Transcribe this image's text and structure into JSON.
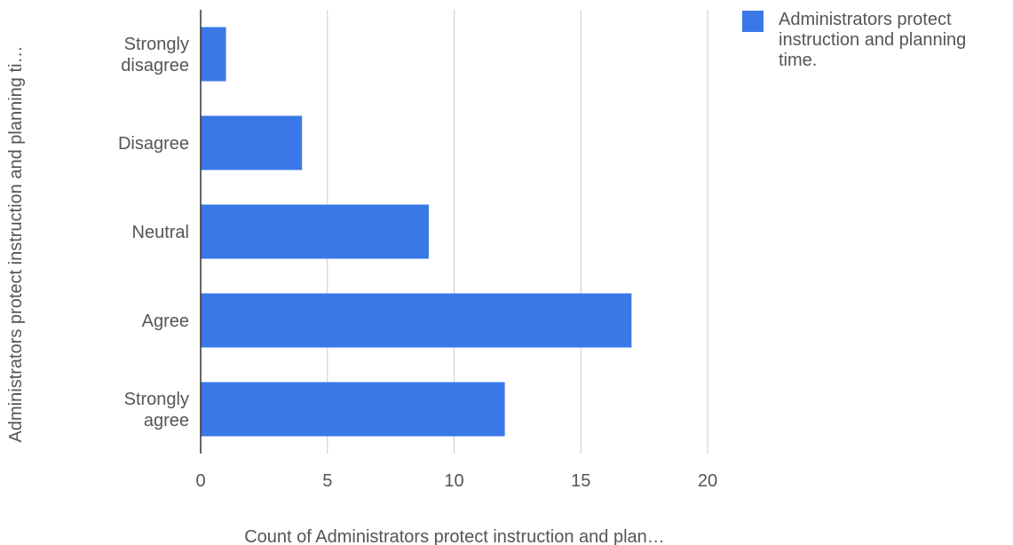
{
  "chart_data": {
    "type": "bar",
    "orientation": "horizontal",
    "categories": [
      "Strongly disagree",
      "Disagree",
      "Neutral",
      "Agree",
      "Strongly agree"
    ],
    "category_lines": [
      [
        "Strongly",
        "disagree"
      ],
      [
        "Disagree"
      ],
      [
        "Neutral"
      ],
      [
        "Agree"
      ],
      [
        "Strongly",
        "agree"
      ]
    ],
    "series": [
      {
        "name": "Administrators protect instruction and planning time.",
        "values": [
          1,
          4,
          9,
          17,
          12
        ]
      }
    ],
    "xlabel": "Count of Administrators protect instruction and plan…",
    "ylabel": "Administrators protect instruction and planning ti…",
    "xlim": [
      0,
      20
    ],
    "xticks": [
      0,
      5,
      10,
      15,
      20
    ],
    "grid": true,
    "legend_position": "right",
    "legend_lines": [
      "Administrators protect",
      "instruction and planning",
      "time."
    ],
    "colors": {
      "bar": "#3b78e7",
      "grid": "#cccccc",
      "axis": "#333333",
      "text": "#555555"
    }
  }
}
